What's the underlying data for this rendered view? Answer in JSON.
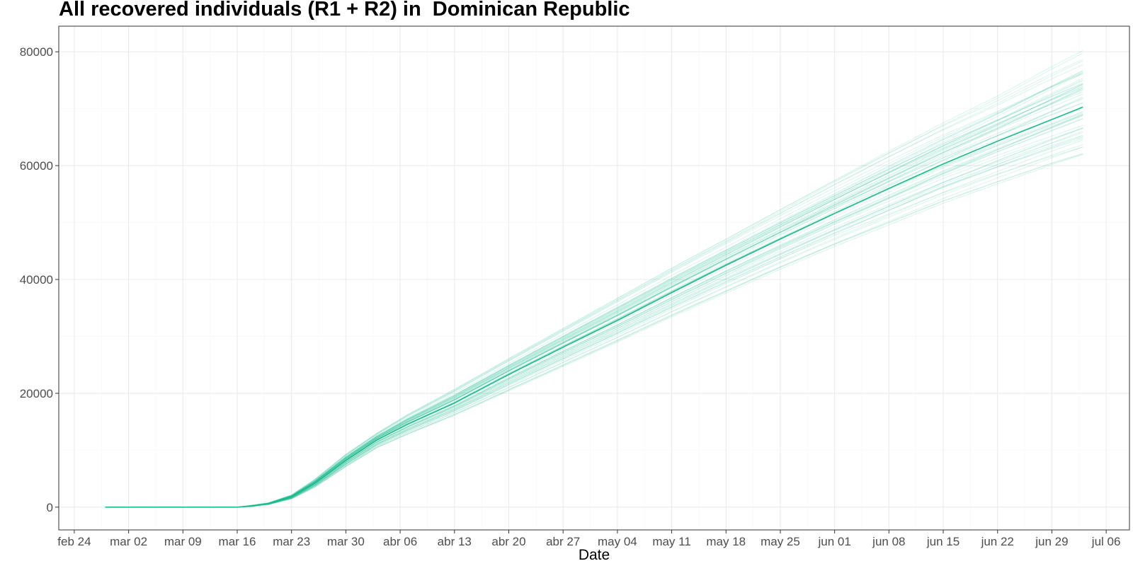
{
  "chart_data": {
    "type": "line",
    "title": "All recovered individuals (R1 + R2) in  Dominican Republic",
    "xlabel": "Date",
    "ylabel": "",
    "x_axis": {
      "type": "date",
      "min": "2020-02-22",
      "max": "2020-07-09",
      "ticks": [
        {
          "date": "2020-02-24",
          "label": "feb 24"
        },
        {
          "date": "2020-03-02",
          "label": "mar 02"
        },
        {
          "date": "2020-03-09",
          "label": "mar 09"
        },
        {
          "date": "2020-03-16",
          "label": "mar 16"
        },
        {
          "date": "2020-03-23",
          "label": "mar 23"
        },
        {
          "date": "2020-03-30",
          "label": "mar 30"
        },
        {
          "date": "2020-04-06",
          "label": "abr 06"
        },
        {
          "date": "2020-04-13",
          "label": "abr 13"
        },
        {
          "date": "2020-04-20",
          "label": "abr 20"
        },
        {
          "date": "2020-04-27",
          "label": "abr 27"
        },
        {
          "date": "2020-05-04",
          "label": "may 04"
        },
        {
          "date": "2020-05-11",
          "label": "may 11"
        },
        {
          "date": "2020-05-18",
          "label": "may 18"
        },
        {
          "date": "2020-05-25",
          "label": "may 25"
        },
        {
          "date": "2020-06-01",
          "label": "jun 01"
        },
        {
          "date": "2020-06-08",
          "label": "jun 08"
        },
        {
          "date": "2020-06-15",
          "label": "jun 15"
        },
        {
          "date": "2020-06-22",
          "label": "jun 22"
        },
        {
          "date": "2020-06-29",
          "label": "jun 29"
        },
        {
          "date": "2020-07-06",
          "label": "jul 06"
        }
      ]
    },
    "y_axis": {
      "min": -4000,
      "max": 84500,
      "ticks": [
        0,
        20000,
        40000,
        60000,
        80000
      ],
      "labels": [
        "0",
        "20000",
        "40000",
        "60000",
        "80000"
      ]
    },
    "grid": true,
    "legend": "none",
    "colors": {
      "line": "#1abc8c",
      "grid_major": "#ebebeb",
      "grid_minor": "#f5f5f5",
      "panel_border": "#333333",
      "tick_text": "#4d4d4d"
    },
    "median_series": {
      "x": [
        "2020-02-28",
        "2020-03-16",
        "2020-03-18",
        "2020-03-20",
        "2020-03-23",
        "2020-03-26",
        "2020-03-30",
        "2020-04-03",
        "2020-04-07",
        "2020-04-13",
        "2020-04-20",
        "2020-04-27",
        "2020-05-04",
        "2020-05-11",
        "2020-05-18",
        "2020-05-25",
        "2020-06-01",
        "2020-06-08",
        "2020-06-15",
        "2020-06-22",
        "2020-06-29",
        "2020-07-03"
      ],
      "y": [
        0,
        0,
        180,
        600,
        1800,
        4200,
        8200,
        11800,
        14600,
        18300,
        23300,
        28100,
        32800,
        37700,
        42500,
        47100,
        51600,
        56000,
        60300,
        64300,
        68100,
        70300
      ]
    },
    "band": {
      "x": [
        "2020-02-28",
        "2020-03-16",
        "2020-03-20",
        "2020-03-23",
        "2020-03-26",
        "2020-03-30",
        "2020-04-03",
        "2020-04-07",
        "2020-04-13",
        "2020-04-20",
        "2020-04-27",
        "2020-05-04",
        "2020-05-11",
        "2020-05-18",
        "2020-05-25",
        "2020-06-01",
        "2020-06-08",
        "2020-06-15",
        "2020-06-22",
        "2020-06-29",
        "2020-07-03"
      ],
      "lower": [
        0,
        0,
        450,
        1450,
        3500,
        7100,
        10400,
        12800,
        16100,
        20400,
        24700,
        29000,
        33400,
        37600,
        41800,
        45800,
        49600,
        53400,
        56800,
        60100,
        61800
      ],
      "upper": [
        0,
        0,
        750,
        2150,
        4900,
        9300,
        13000,
        16300,
        20700,
        26100,
        31400,
        36700,
        42000,
        47100,
        52300,
        57500,
        62600,
        67600,
        72300,
        77500,
        80300
      ]
    },
    "n_simulations": 60
  }
}
